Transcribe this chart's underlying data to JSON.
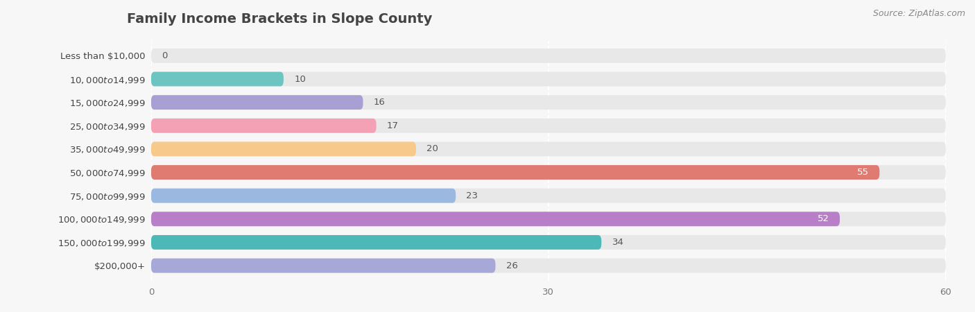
{
  "title": "Family Income Brackets in Slope County",
  "source": "Source: ZipAtlas.com",
  "categories": [
    "Less than $10,000",
    "$10,000 to $14,999",
    "$15,000 to $24,999",
    "$25,000 to $34,999",
    "$35,000 to $49,999",
    "$50,000 to $74,999",
    "$75,000 to $99,999",
    "$100,000 to $149,999",
    "$150,000 to $199,999",
    "$200,000+"
  ],
  "values": [
    0,
    10,
    16,
    17,
    20,
    55,
    23,
    52,
    34,
    26
  ],
  "bar_colors": [
    "#d4a8c7",
    "#6dc5c1",
    "#a89fd4",
    "#f4a0b5",
    "#f7c98a",
    "#e07b72",
    "#9ab8e0",
    "#b87fc8",
    "#4db8b8",
    "#a8a8d8"
  ],
  "xlim": [
    0,
    60
  ],
  "xticks": [
    0,
    30,
    60
  ],
  "background_color": "#f7f7f7",
  "bar_bg_color": "#e8e8e8",
  "title_fontsize": 14,
  "label_fontsize": 9.5,
  "value_fontsize": 9.5,
  "source_fontsize": 9
}
